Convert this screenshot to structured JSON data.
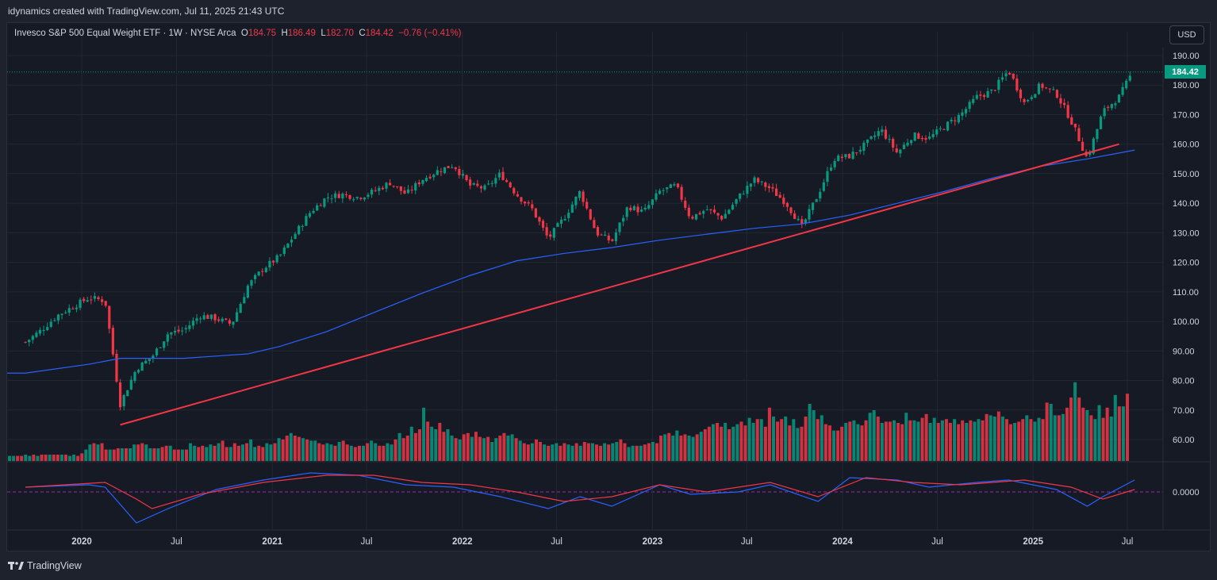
{
  "header": {
    "attribution": "idynamics created with TradingView.com, Jul 11, 2025 21:43 UTC"
  },
  "legend": {
    "symbol": "Invesco S&P 500 Equal Weight ETF · 1W · NYSE Arca",
    "o_label": "O",
    "o_value": "184.75",
    "h_label": "H",
    "h_value": "186.49",
    "l_label": "L",
    "l_value": "182.70",
    "c_label": "C",
    "c_value": "184.42",
    "change": "−0.76 (−0.41%)"
  },
  "currency_button": "USD",
  "last_price_label": "184.42",
  "osc_zero_label": "0.0000",
  "footer": {
    "brand": "TradingView"
  },
  "colors": {
    "up": "#089981",
    "down": "#f23645",
    "ma": "#2962ff",
    "trendline": "#f23645",
    "osc_fast": "#2962ff",
    "osc_slow": "#f23645",
    "background": "#161a25",
    "grid": "#232733"
  },
  "chart_data": {
    "type": "candlestick",
    "interval": "1W",
    "ylim": [
      50,
      195
    ],
    "y_ticks": [
      "190.00",
      "180.00",
      "170.00",
      "160.00",
      "150.00",
      "140.00",
      "130.00",
      "120.00",
      "110.00",
      "100.00",
      "90.00",
      "80.00",
      "70.00",
      "60.00"
    ],
    "x_ticks": [
      "2020",
      "Jul",
      "2021",
      "Jul",
      "2022",
      "Jul",
      "2023",
      "Jul",
      "2024",
      "Jul",
      "2025",
      "Jul"
    ],
    "last_close": 184.42,
    "price_path": [
      {
        "t": "2019-09",
        "p": 93
      },
      {
        "t": "2019-10",
        "p": 97
      },
      {
        "t": "2019-11",
        "p": 102
      },
      {
        "t": "2019-12",
        "p": 105
      },
      {
        "t": "2020-01",
        "p": 108
      },
      {
        "t": "2020-02",
        "p": 107
      },
      {
        "t": "2020-03",
        "p": 72
      },
      {
        "t": "2020-04",
        "p": 84
      },
      {
        "t": "2020-05",
        "p": 88
      },
      {
        "t": "2020-06",
        "p": 96
      },
      {
        "t": "2020-07",
        "p": 97
      },
      {
        "t": "2020-08",
        "p": 102
      },
      {
        "t": "2020-09",
        "p": 101
      },
      {
        "t": "2020-10",
        "p": 99
      },
      {
        "t": "2020-11",
        "p": 112
      },
      {
        "t": "2020-12",
        "p": 118
      },
      {
        "t": "2021-01",
        "p": 122
      },
      {
        "t": "2021-02",
        "p": 130
      },
      {
        "t": "2021-03",
        "p": 137
      },
      {
        "t": "2021-04",
        "p": 142
      },
      {
        "t": "2021-05",
        "p": 143
      },
      {
        "t": "2021-06",
        "p": 142
      },
      {
        "t": "2021-07",
        "p": 144
      },
      {
        "t": "2021-08",
        "p": 147
      },
      {
        "t": "2021-09",
        "p": 143
      },
      {
        "t": "2021-10",
        "p": 148
      },
      {
        "t": "2021-11",
        "p": 151
      },
      {
        "t": "2021-12",
        "p": 153
      },
      {
        "t": "2022-01",
        "p": 146
      },
      {
        "t": "2022-02",
        "p": 145
      },
      {
        "t": "2022-03",
        "p": 150
      },
      {
        "t": "2022-04",
        "p": 143
      },
      {
        "t": "2022-05",
        "p": 138
      },
      {
        "t": "2022-06",
        "p": 128
      },
      {
        "t": "2022-07",
        "p": 135
      },
      {
        "t": "2022-08",
        "p": 144
      },
      {
        "t": "2022-09",
        "p": 130
      },
      {
        "t": "2022-10",
        "p": 127
      },
      {
        "t": "2022-11",
        "p": 139
      },
      {
        "t": "2022-12",
        "p": 137
      },
      {
        "t": "2023-01",
        "p": 144
      },
      {
        "t": "2023-02",
        "p": 146
      },
      {
        "t": "2023-03",
        "p": 135
      },
      {
        "t": "2023-04",
        "p": 138
      },
      {
        "t": "2023-05",
        "p": 135
      },
      {
        "t": "2023-06",
        "p": 142
      },
      {
        "t": "2023-07",
        "p": 148
      },
      {
        "t": "2023-08",
        "p": 145
      },
      {
        "t": "2023-09",
        "p": 140
      },
      {
        "t": "2023-10",
        "p": 132
      },
      {
        "t": "2023-11",
        "p": 143
      },
      {
        "t": "2023-12",
        "p": 155
      },
      {
        "t": "2024-01",
        "p": 156
      },
      {
        "t": "2024-02",
        "p": 160
      },
      {
        "t": "2024-03",
        "p": 165
      },
      {
        "t": "2024-04",
        "p": 157
      },
      {
        "t": "2024-05",
        "p": 163
      },
      {
        "t": "2024-06",
        "p": 162
      },
      {
        "t": "2024-07",
        "p": 166
      },
      {
        "t": "2024-08",
        "p": 170
      },
      {
        "t": "2024-09",
        "p": 176
      },
      {
        "t": "2024-10",
        "p": 178
      },
      {
        "t": "2024-11",
        "p": 185
      },
      {
        "t": "2024-12",
        "p": 174
      },
      {
        "t": "2025-01",
        "p": 180
      },
      {
        "t": "2025-02",
        "p": 177
      },
      {
        "t": "2025-03",
        "p": 168
      },
      {
        "t": "2025-04",
        "p": 155
      },
      {
        "t": "2025-05",
        "p": 171
      },
      {
        "t": "2025-06",
        "p": 176
      },
      {
        "t": "2025-07",
        "p": 184.42
      }
    ],
    "moving_average": [
      {
        "t": "2019-09",
        "p": 82.5
      },
      {
        "t": "2020-01",
        "p": 85.5
      },
      {
        "t": "2020-03",
        "p": 87.5
      },
      {
        "t": "2020-07",
        "p": 87.5
      },
      {
        "t": "2020-11",
        "p": 89
      },
      {
        "t": "2021-01",
        "p": 91.5
      },
      {
        "t": "2021-04",
        "p": 96.5
      },
      {
        "t": "2021-07",
        "p": 103
      },
      {
        "t": "2021-10",
        "p": 109.5
      },
      {
        "t": "2022-01",
        "p": 115.5
      },
      {
        "t": "2022-04",
        "p": 120.5
      },
      {
        "t": "2022-07",
        "p": 123
      },
      {
        "t": "2022-10",
        "p": 125
      },
      {
        "t": "2023-01",
        "p": 127.5
      },
      {
        "t": "2023-04",
        "p": 129.5
      },
      {
        "t": "2023-07",
        "p": 131.5
      },
      {
        "t": "2023-10",
        "p": 133
      },
      {
        "t": "2024-01",
        "p": 136
      },
      {
        "t": "2024-04",
        "p": 140
      },
      {
        "t": "2024-07",
        "p": 144
      },
      {
        "t": "2024-10",
        "p": 148.5
      },
      {
        "t": "2025-01",
        "p": 152.5
      },
      {
        "t": "2025-04",
        "p": 155
      },
      {
        "t": "2025-07",
        "p": 158
      }
    ],
    "trendline": [
      {
        "t": "2020-03",
        "p": 65
      },
      {
        "t": "2025-06",
        "p": 160
      }
    ],
    "volume": {
      "note": "relative weekly volume bars",
      "values": [
        0.04,
        0.04,
        0.04,
        0.04,
        0.05,
        0.04,
        0.05,
        0.04,
        0.05,
        0.05,
        0.05,
        0.05,
        0.05,
        0.05,
        0.05,
        0.04,
        0.05,
        0.04,
        0.06,
        0.09,
        0.13,
        0.14,
        0.13,
        0.14,
        0.09,
        0.09,
        0.09,
        0.1,
        0.1,
        0.1,
        0.1,
        0.13,
        0.13,
        0.14,
        0.13,
        0.1,
        0.1,
        0.1,
        0.11,
        0.12,
        0.12,
        0.09,
        0.09,
        0.09,
        0.09,
        0.14,
        0.12,
        0.11,
        0.12,
        0.11,
        0.13,
        0.12,
        0.14,
        0.16,
        0.11,
        0.11,
        0.14,
        0.12,
        0.13,
        0.14,
        0.17,
        0.11,
        0.12,
        0.11,
        0.14,
        0.13,
        0.14,
        0.18,
        0.17,
        0.2,
        0.22,
        0.2,
        0.19,
        0.18,
        0.17,
        0.16,
        0.16,
        0.14,
        0.13,
        0.14,
        0.13,
        0.12,
        0.15,
        0.16,
        0.13,
        0.12,
        0.11,
        0.12,
        0.12,
        0.14,
        0.16,
        0.14,
        0.12,
        0.12,
        0.14,
        0.13,
        0.17,
        0.22,
        0.18,
        0.2,
        0.27,
        0.22,
        0.25,
        0.42,
        0.31,
        0.27,
        0.25,
        0.3,
        0.23,
        0.25,
        0.2,
        0.18,
        0.17,
        0.21,
        0.22,
        0.19,
        0.23,
        0.19,
        0.18,
        0.19,
        0.15,
        0.18,
        0.2,
        0.22,
        0.2,
        0.21,
        0.18,
        0.16,
        0.14,
        0.13,
        0.14,
        0.17,
        0.15,
        0.13,
        0.12,
        0.13,
        0.14,
        0.12,
        0.14,
        0.13,
        0.12,
        0.14,
        0.12,
        0.15,
        0.14,
        0.14,
        0.13,
        0.12,
        0.14,
        0.13,
        0.14,
        0.15,
        0.17,
        0.14,
        0.11,
        0.12,
        0.12,
        0.12,
        0.13,
        0.14,
        0.15,
        0.14,
        0.2,
        0.21,
        0.22,
        0.2,
        0.24,
        0.2,
        0.21,
        0.2,
        0.19,
        0.21,
        0.23,
        0.25,
        0.27,
        0.29,
        0.3,
        0.27,
        0.3,
        0.25,
        0.27,
        0.29,
        0.31,
        0.28,
        0.34,
        0.3,
        0.33,
        0.33,
        0.27,
        0.42,
        0.35,
        0.31,
        0.33,
        0.35,
        0.28,
        0.33,
        0.26,
        0.27,
        0.35,
        0.45,
        0.4,
        0.33,
        0.36,
        0.29,
        0.28,
        0.24,
        0.24,
        0.27,
        0.3,
        0.31,
        0.32,
        0.29,
        0.28,
        0.32,
        0.38,
        0.4,
        0.35,
        0.3,
        0.31,
        0.31,
        0.32,
        0.3,
        0.29,
        0.38,
        0.32,
        0.32,
        0.31,
        0.34,
        0.37,
        0.3,
        0.34,
        0.3,
        0.32,
        0.33,
        0.3,
        0.33,
        0.29,
        0.32,
        0.3,
        0.32,
        0.31,
        0.33,
        0.32,
        0.37,
        0.36,
        0.35,
        0.39,
        0.35,
        0.33,
        0.29,
        0.3,
        0.31,
        0.33,
        0.36,
        0.33,
        0.31,
        0.34,
        0.33,
        0.46,
        0.45,
        0.36,
        0.36,
        0.37,
        0.42,
        0.5,
        0.62,
        0.5,
        0.42,
        0.4,
        0.36,
        0.33,
        0.44,
        0.34,
        0.42,
        0.35,
        0.52,
        0.43,
        0.43,
        0.53
      ]
    },
    "oscillator": {
      "zero_label": "0.0000",
      "fast": [
        {
          "t": "2019-09",
          "p": 0.2
        },
        {
          "t": "2020-01",
          "p": 0.3
        },
        {
          "t": "2020-02",
          "p": 0.2
        },
        {
          "t": "2020-04",
          "p": -1.3
        },
        {
          "t": "2020-06",
          "p": -0.7
        },
        {
          "t": "2020-09",
          "p": 0.1
        },
        {
          "t": "2020-12",
          "p": 0.5
        },
        {
          "t": "2021-03",
          "p": 0.8
        },
        {
          "t": "2021-06",
          "p": 0.7
        },
        {
          "t": "2021-09",
          "p": 0.3
        },
        {
          "t": "2021-12",
          "p": 0.2
        },
        {
          "t": "2022-03",
          "p": -0.2
        },
        {
          "t": "2022-06",
          "p": -0.7
        },
        {
          "t": "2022-08",
          "p": -0.2
        },
        {
          "t": "2022-10",
          "p": -0.6
        },
        {
          "t": "2023-01",
          "p": 0.3
        },
        {
          "t": "2023-03",
          "p": -0.1
        },
        {
          "t": "2023-06",
          "p": 0.0
        },
        {
          "t": "2023-08",
          "p": 0.3
        },
        {
          "t": "2023-11",
          "p": -0.4
        },
        {
          "t": "2024-01",
          "p": 0.6
        },
        {
          "t": "2024-04",
          "p": 0.5
        },
        {
          "t": "2024-06",
          "p": 0.2
        },
        {
          "t": "2024-09",
          "p": 0.4
        },
        {
          "t": "2024-11",
          "p": 0.5
        },
        {
          "t": "2025-02",
          "p": 0.1
        },
        {
          "t": "2025-04",
          "p": -0.6
        },
        {
          "t": "2025-05",
          "p": -0.2
        },
        {
          "t": "2025-07",
          "p": 0.5
        }
      ],
      "slow": [
        {
          "t": "2019-09",
          "p": 0.2
        },
        {
          "t": "2020-02",
          "p": 0.4
        },
        {
          "t": "2020-04",
          "p": -0.3
        },
        {
          "t": "2020-05",
          "p": -0.7
        },
        {
          "t": "2020-08",
          "p": -0.1
        },
        {
          "t": "2020-12",
          "p": 0.4
        },
        {
          "t": "2021-04",
          "p": 0.7
        },
        {
          "t": "2021-07",
          "p": 0.7
        },
        {
          "t": "2021-10",
          "p": 0.4
        },
        {
          "t": "2022-01",
          "p": 0.3
        },
        {
          "t": "2022-04",
          "p": 0.0
        },
        {
          "t": "2022-07",
          "p": -0.4
        },
        {
          "t": "2022-10",
          "p": -0.2
        },
        {
          "t": "2023-01",
          "p": 0.3
        },
        {
          "t": "2023-04",
          "p": 0.0
        },
        {
          "t": "2023-08",
          "p": 0.4
        },
        {
          "t": "2023-11",
          "p": -0.2
        },
        {
          "t": "2024-02",
          "p": 0.6
        },
        {
          "t": "2024-05",
          "p": 0.4
        },
        {
          "t": "2024-08",
          "p": 0.3
        },
        {
          "t": "2024-12",
          "p": 0.5
        },
        {
          "t": "2025-03",
          "p": 0.2
        },
        {
          "t": "2025-05",
          "p": -0.3
        },
        {
          "t": "2025-07",
          "p": 0.1
        }
      ]
    }
  }
}
